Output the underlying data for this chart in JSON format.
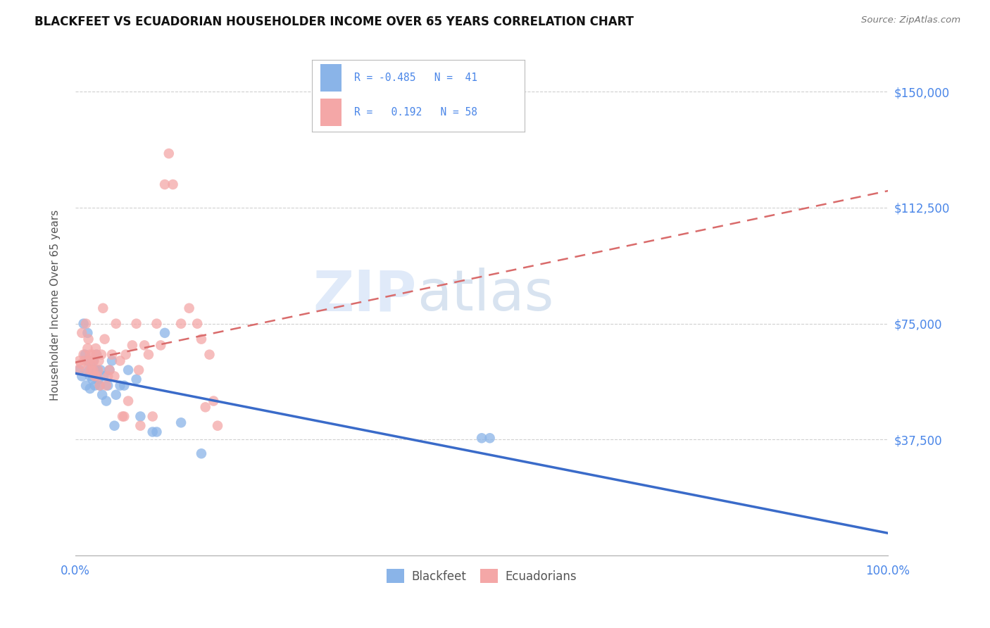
{
  "title": "BLACKFEET VS ECUADORIAN HOUSEHOLDER INCOME OVER 65 YEARS CORRELATION CHART",
  "source": "Source: ZipAtlas.com",
  "ylabel": "Householder Income Over 65 years",
  "y_tick_labels": [
    "$37,500",
    "$75,000",
    "$112,500",
    "$150,000"
  ],
  "y_tick_values": [
    37500,
    75000,
    112500,
    150000
  ],
  "ylim": [
    0,
    162000
  ],
  "xlim": [
    0,
    1.0
  ],
  "color_blue": "#8ab4e8",
  "color_pink": "#f4a7a7",
  "color_blue_line": "#3a6bc9",
  "color_pink_line": "#d96b6b",
  "watermark_zip": "ZIP",
  "watermark_atlas": "atlas",
  "blackfeet_r": -0.485,
  "blackfeet_n": 41,
  "ecuadorian_r": 0.192,
  "ecuadorian_n": 58,
  "blackfeet_x": [
    0.005,
    0.008,
    0.01,
    0.012,
    0.013,
    0.015,
    0.015,
    0.017,
    0.018,
    0.018,
    0.02,
    0.021,
    0.022,
    0.023,
    0.024,
    0.025,
    0.026,
    0.027,
    0.028,
    0.03,
    0.031,
    0.033,
    0.035,
    0.038,
    0.04,
    0.042,
    0.045,
    0.048,
    0.05,
    0.055,
    0.06,
    0.065,
    0.075,
    0.08,
    0.095,
    0.1,
    0.11,
    0.13,
    0.155,
    0.5,
    0.51
  ],
  "blackfeet_y": [
    60000,
    58000,
    75000,
    65000,
    55000,
    63000,
    72000,
    60000,
    58000,
    54000,
    60000,
    57000,
    63000,
    60000,
    55000,
    58000,
    65000,
    60000,
    57000,
    55000,
    60000,
    52000,
    58000,
    50000,
    55000,
    60000,
    63000,
    42000,
    52000,
    55000,
    55000,
    60000,
    57000,
    45000,
    40000,
    40000,
    72000,
    43000,
    33000,
    38000,
    38000
  ],
  "ecuadorian_x": [
    0.003,
    0.005,
    0.007,
    0.008,
    0.01,
    0.011,
    0.013,
    0.014,
    0.015,
    0.016,
    0.017,
    0.018,
    0.019,
    0.02,
    0.021,
    0.022,
    0.023,
    0.024,
    0.025,
    0.026,
    0.027,
    0.028,
    0.029,
    0.03,
    0.032,
    0.034,
    0.036,
    0.038,
    0.04,
    0.042,
    0.045,
    0.048,
    0.05,
    0.055,
    0.058,
    0.06,
    0.062,
    0.065,
    0.07,
    0.075,
    0.078,
    0.08,
    0.085,
    0.09,
    0.095,
    0.1,
    0.105,
    0.11,
    0.115,
    0.12,
    0.13,
    0.14,
    0.15,
    0.155,
    0.16,
    0.165,
    0.17,
    0.175
  ],
  "ecuadorian_y": [
    60000,
    63000,
    62000,
    72000,
    65000,
    63000,
    75000,
    60000,
    67000,
    70000,
    63000,
    65000,
    60000,
    62000,
    65000,
    60000,
    63000,
    58000,
    67000,
    65000,
    58000,
    60000,
    63000,
    55000,
    65000,
    80000,
    70000,
    55000,
    58000,
    60000,
    65000,
    58000,
    75000,
    63000,
    45000,
    45000,
    65000,
    50000,
    68000,
    75000,
    60000,
    42000,
    68000,
    65000,
    45000,
    75000,
    68000,
    120000,
    130000,
    120000,
    75000,
    80000,
    75000,
    70000,
    48000,
    65000,
    50000,
    42000
  ]
}
